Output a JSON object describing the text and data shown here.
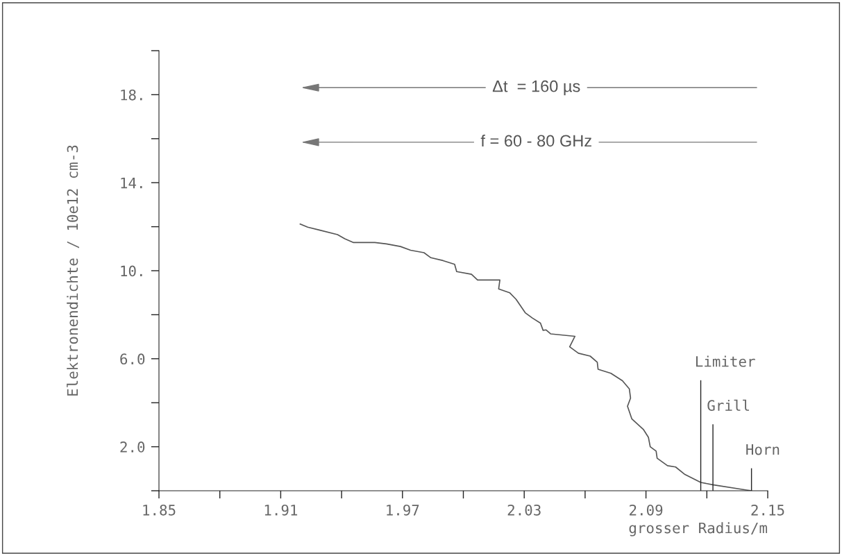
{
  "chart_data": {
    "type": "line",
    "xlabel": "grosser Radius/m",
    "ylabel": "Elektronendichte / 10e12 cm-3",
    "x": [
      1.9196,
      1.9233,
      1.929,
      1.938,
      1.9416,
      1.9459,
      1.9564,
      1.9621,
      1.969,
      1.974,
      1.9806,
      1.984,
      1.99,
      1.9957,
      1.9967,
      2.004,
      2.007,
      2.018,
      2.0174,
      2.0228,
      2.026,
      2.0305,
      2.034,
      2.038,
      2.0393,
      2.0408,
      2.043,
      2.055,
      2.0524,
      2.0567,
      2.0625,
      2.066,
      2.0664,
      2.0727,
      2.0784,
      2.0818,
      2.0824,
      2.0809,
      2.083,
      2.0887,
      2.0912,
      2.0921,
      2.095,
      2.0955,
      2.1006,
      2.1046,
      2.1092,
      2.117,
      2.1229,
      2.1396,
      2.142
    ],
    "series": [
      {
        "color": "#555555",
        "values": [
          12.12,
          11.98,
          11.85,
          11.64,
          11.45,
          11.28,
          11.28,
          11.22,
          11.1,
          10.93,
          10.82,
          10.59,
          10.46,
          10.29,
          9.96,
          9.84,
          9.58,
          9.58,
          9.17,
          9.0,
          8.7,
          8.09,
          7.85,
          7.62,
          7.29,
          7.31,
          7.13,
          7.02,
          6.54,
          6.25,
          6.12,
          5.84,
          5.52,
          5.34,
          5.0,
          4.63,
          4.21,
          3.84,
          3.27,
          2.79,
          2.43,
          2.0,
          1.8,
          1.48,
          1.14,
          1.08,
          0.74,
          0.38,
          0.27,
          0.03,
          0.0
        ]
      }
    ],
    "xlim": [
      1.85,
      2.15
    ],
    "xticks": [
      1.85,
      {
        "value": 1.88,
        "label": null
      },
      1.91,
      {
        "value": 1.94,
        "label": null
      },
      1.97,
      {
        "value": 2.0,
        "label": null
      },
      2.03,
      {
        "value": 2.06,
        "label": null
      },
      2.09,
      {
        "value": 2.12,
        "label": null
      },
      2.15
    ],
    "ylim": [
      0,
      20
    ],
    "yticks": [
      {
        "value": 0,
        "label": null
      },
      {
        "value": 2,
        "label": "2.0"
      },
      {
        "value": 4,
        "label": null
      },
      {
        "value": 6,
        "label": "6.0"
      },
      {
        "value": 8,
        "label": null
      },
      {
        "value": 10,
        "label": "10."
      },
      {
        "value": 12,
        "label": null
      },
      {
        "value": 14,
        "label": "14."
      },
      {
        "value": 16,
        "label": null
      },
      {
        "value": 18,
        "label": "18."
      },
      {
        "value": 20,
        "label": null
      }
    ],
    "grid": false,
    "legend": false,
    "marker": "none",
    "line_style": "solid",
    "annotations": [
      "Δt  = 160 µs",
      "f = 60 - 80 GHz"
    ],
    "ref_lines": [
      {
        "axis": "x",
        "value": 2.117,
        "label": "Limiter",
        "color": "#222222"
      },
      {
        "axis": "x",
        "value": 2.123,
        "label": "Grill",
        "color": "#222222"
      },
      {
        "axis": "x",
        "value": 2.142,
        "label": "Horn",
        "color": "#222222"
      }
    ]
  }
}
